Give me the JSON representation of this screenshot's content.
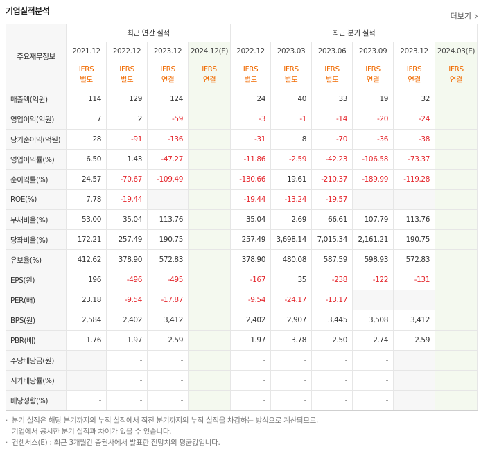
{
  "header": {
    "title": "기업실적분석",
    "more": "더보기"
  },
  "table": {
    "corner": "주요재무정보",
    "groups": [
      {
        "title": "최근 연간 실적",
        "periods": [
          "2021.12",
          "2022.12",
          "2023.12",
          "2024.12(E)"
        ],
        "basis": [
          {
            "std": "IFRS",
            "type": "별도"
          },
          {
            "std": "IFRS",
            "type": "별도"
          },
          {
            "std": "IFRS",
            "type": "연결"
          },
          {
            "std": "IFRS",
            "type": "연결"
          }
        ]
      },
      {
        "title": "최근 분기 실적",
        "periods": [
          "2022.12",
          "2023.03",
          "2023.06",
          "2023.09",
          "2023.12",
          "2024.03(E)"
        ],
        "basis": [
          {
            "std": "IFRS",
            "type": "별도"
          },
          {
            "std": "IFRS",
            "type": "별도"
          },
          {
            "std": "IFRS",
            "type": "별도"
          },
          {
            "std": "IFRS",
            "type": "연결"
          },
          {
            "std": "IFRS",
            "type": "연결"
          },
          {
            "std": "IFRS",
            "type": "연결"
          }
        ]
      }
    ],
    "rows": [
      {
        "label": "매출액(억원)",
        "values": [
          "114",
          "129",
          "124",
          null,
          "24",
          "40",
          "33",
          "19",
          "32",
          null
        ]
      },
      {
        "label": "영업이익(억원)",
        "values": [
          "7",
          "2",
          "-59",
          null,
          "-3",
          "-1",
          "-14",
          "-20",
          "-24",
          null
        ]
      },
      {
        "label": "당기순이익(억원)",
        "values": [
          "28",
          "-91",
          "-136",
          null,
          "-31",
          "8",
          "-70",
          "-36",
          "-38",
          null
        ]
      },
      {
        "label": "영업이익률(%)",
        "values": [
          "6.50",
          "1.43",
          "-47.27",
          null,
          "-11.86",
          "-2.59",
          "-42.23",
          "-106.58",
          "-73.37",
          null
        ]
      },
      {
        "label": "순이익률(%)",
        "values": [
          "24.57",
          "-70.67",
          "-109.49",
          null,
          "-130.66",
          "19.61",
          "-210.37",
          "-189.99",
          "-119.28",
          null
        ]
      },
      {
        "label": "ROE(%)",
        "values": [
          "7.78",
          "-19.44",
          null,
          null,
          "-19.44",
          "-13.24",
          "-19.57",
          null,
          null,
          null
        ]
      },
      {
        "label": "부채비율(%)",
        "values": [
          "53.00",
          "35.04",
          "113.76",
          null,
          "35.04",
          "2.69",
          "66.61",
          "107.79",
          "113.76",
          null
        ]
      },
      {
        "label": "당좌비율(%)",
        "values": [
          "172.21",
          "257.49",
          "190.75",
          null,
          "257.49",
          "3,698.14",
          "7,015.34",
          "2,161.21",
          "190.75",
          null
        ]
      },
      {
        "label": "유보율(%)",
        "values": [
          "412.62",
          "378.90",
          "572.83",
          null,
          "378.90",
          "480.08",
          "587.59",
          "598.93",
          "572.83",
          null
        ]
      },
      {
        "label": "EPS(원)",
        "values": [
          "196",
          "-496",
          "-495",
          null,
          "-167",
          "35",
          "-238",
          "-122",
          "-131",
          null
        ]
      },
      {
        "label": "PER(배)",
        "values": [
          "23.18",
          "-9.54",
          "-17.87",
          null,
          "-9.54",
          "-24.17",
          "-13.17",
          null,
          null,
          null
        ]
      },
      {
        "label": "BPS(원)",
        "values": [
          "2,584",
          "2,402",
          "3,412",
          null,
          "2,402",
          "2,907",
          "3,445",
          "3,508",
          "3,412",
          null
        ]
      },
      {
        "label": "PBR(배)",
        "values": [
          "1.76",
          "1.97",
          "2.59",
          null,
          "1.97",
          "3.78",
          "2.50",
          "2.74",
          "2.59",
          null
        ]
      },
      {
        "label": "주당배당금(원)",
        "values": [
          null,
          "-",
          "-",
          null,
          "-",
          "-",
          "-",
          "-",
          null,
          null
        ]
      },
      {
        "label": "시가배당률(%)",
        "values": [
          null,
          "-",
          "-",
          null,
          "-",
          "-",
          "-",
          "-",
          null,
          null
        ]
      },
      {
        "label": "배당성향(%)",
        "values": [
          "-",
          "-",
          "-",
          null,
          "-",
          "-",
          "-",
          "-",
          null,
          null
        ]
      }
    ]
  },
  "notes": [
    [
      "분기 실적은 해당 분기까지의 누적 실적에서 직전 분기까지의 누적 실적을 차감하는 방식으로 계산되므로,",
      "기업에서 공시한 분기 실적과 차이가 있을 수 있습니다."
    ],
    [
      "컨센서스(E) : 최근 3개월간 증권사에서 발표한 전망치의 평균값입니다."
    ]
  ]
}
